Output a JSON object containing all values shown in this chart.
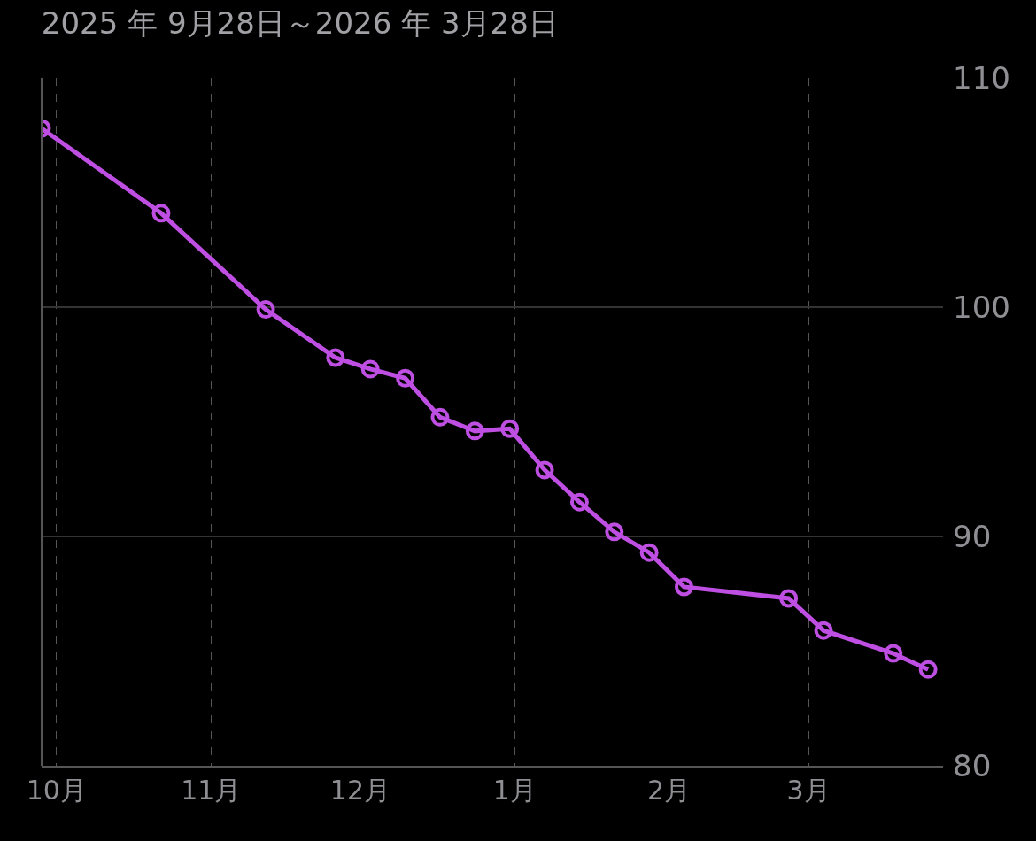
{
  "chart_data": {
    "type": "line",
    "title": "2025 年 9月28日～2026 年 3月28日",
    "x": [
      "2025-09-28",
      "2025-10-22",
      "2025-11-12",
      "2025-11-26",
      "2025-12-03",
      "2025-12-10",
      "2025-12-17",
      "2025-12-24",
      "2025-12-31",
      "2026-01-07",
      "2026-01-14",
      "2026-01-21",
      "2026-01-28",
      "2026-02-04",
      "2026-02-25",
      "2026-03-04",
      "2026-03-18",
      "2026-03-25"
    ],
    "series": [
      {
        "color": "#bf4fe3",
        "values": [
          107.8,
          104.1,
          99.9,
          97.8,
          97.3,
          96.9,
          95.2,
          94.6,
          94.7,
          92.9,
          91.5,
          90.2,
          89.3,
          87.8,
          87.3,
          85.9,
          84.9,
          84.2
        ]
      }
    ],
    "xlim": [
      "2025-09-28",
      "2026-03-28"
    ],
    "xticks": [
      {
        "value": "2025-10-01",
        "label": "10月"
      },
      {
        "value": "2025-11-01",
        "label": "11月"
      },
      {
        "value": "2025-12-01",
        "label": "12月"
      },
      {
        "value": "2026-01-01",
        "label": "1月"
      },
      {
        "value": "2026-02-01",
        "label": "2月"
      },
      {
        "value": "2026-03-01",
        "label": "3月"
      }
    ],
    "ylim": [
      80,
      110
    ],
    "yticks": [
      80,
      90,
      100,
      110
    ],
    "grid": true,
    "marker": "circle",
    "line_style": "solid"
  }
}
